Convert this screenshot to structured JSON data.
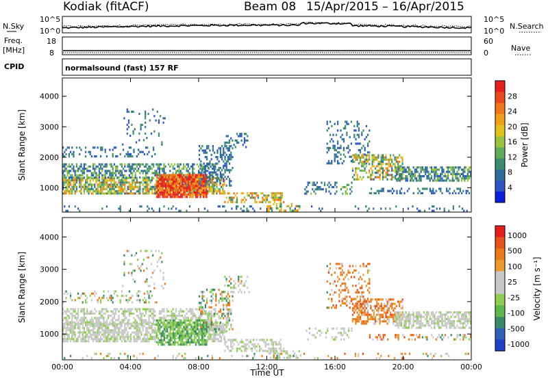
{
  "header": {
    "station": "Kodiak (fitACF)",
    "beam": "Beam 08",
    "date_range": "15/Apr/2015 – 16/Apr/2015"
  },
  "top_panels": {
    "nsky_label": "N.Sky",
    "nsearch_label": "N.Search",
    "noise_ticks_left": [
      "10^5",
      "10^0"
    ],
    "noise_ticks_right": [
      "10^5",
      "10^0"
    ],
    "freq_label": "Freq.",
    "freq_unit": "[MHz]",
    "freq_ticks": [
      "18",
      "8"
    ],
    "nave_label": "Nave",
    "nave_ticks": [
      "60",
      "0"
    ],
    "cpid_label": "CPID",
    "cpid_text": "normalsound (fast) 157 RF"
  },
  "colors": {
    "power_scale": [
      "#0a1ee0",
      "#2d55c8",
      "#2e6e9a",
      "#3c8c6e",
      "#5fae5a",
      "#9ac43c",
      "#e3c21c",
      "#f2a01a",
      "#f2761a",
      "#ea4a1e",
      "#e51e1e"
    ],
    "velocity_scale": [
      "#2040c8",
      "#2f62b8",
      "#3a8a68",
      "#5cb84a",
      "#8ece52",
      "#c8c8c8",
      "#c8c8c8",
      "#ee9a2a",
      "#ec7a18",
      "#e8501c",
      "#e61e1e"
    ]
  },
  "chart_data": [
    {
      "type": "heatmap",
      "ylabel": "Slant Range [km]",
      "xlabel": "Time UT",
      "x_ticks": [
        "00:00",
        "04:00",
        "08:00",
        "12:00",
        "16:00",
        "20:00",
        "00:00"
      ],
      "y_ticks": [
        1000,
        2000,
        3000,
        4000
      ],
      "ylim": [
        200,
        4600
      ],
      "colorbar": {
        "label": "Power [dB]",
        "ticks": [
          4,
          8,
          12,
          16,
          20,
          24,
          28
        ]
      }
    },
    {
      "type": "heatmap",
      "ylabel": "Slant Range [km]",
      "xlabel": "Time UT",
      "x_ticks": [
        "00:00",
        "04:00",
        "08:00",
        "12:00",
        "16:00",
        "20:00",
        "00:00"
      ],
      "y_ticks": [
        1000,
        2000,
        3000,
        4000
      ],
      "ylim": [
        200,
        4600
      ],
      "colorbar": {
        "label": "Velocity [m s⁻¹]",
        "ticks": [
          1000,
          500,
          100,
          25,
          -25,
          -100,
          -500,
          -1000
        ]
      }
    }
  ]
}
